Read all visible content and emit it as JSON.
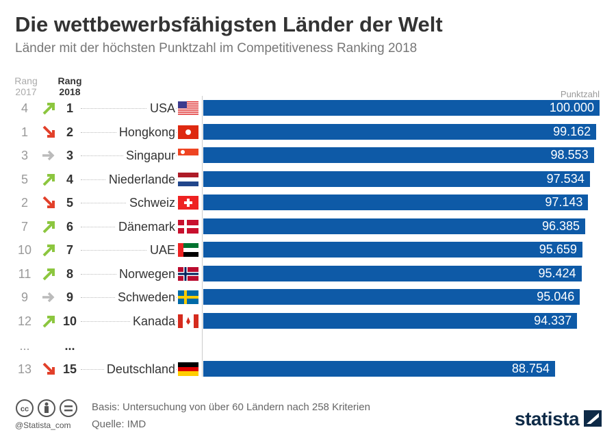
{
  "title": "Die wettbewerbsfähigsten Länder der Welt",
  "subtitle": "Länder mit der höchsten Punktzahl im Competitiveness Ranking 2018",
  "headers": {
    "rank2017": [
      "Rang",
      "2017"
    ],
    "rank2018": [
      "Rang",
      "2018"
    ],
    "score": "Punktzahl"
  },
  "colors": {
    "bar": "#0e5aa7",
    "up": "#8cc63f",
    "down": "#e2402a",
    "same": "#bbbbbb"
  },
  "chart_data": {
    "type": "bar",
    "orientation": "horizontal",
    "xlim": [
      0,
      100
    ],
    "categories": [
      "USA",
      "Hongkong",
      "Singapur",
      "Niederlande",
      "Schweiz",
      "Dänemark",
      "UAE",
      "Norwegen",
      "Schweden",
      "Kanada",
      "Deutschland"
    ],
    "values": [
      100.0,
      99.162,
      98.553,
      97.534,
      97.143,
      96.385,
      95.659,
      95.424,
      95.046,
      94.337,
      88.754
    ],
    "value_labels": [
      "100.000",
      "99.162",
      "98.553",
      "97.534",
      "97.143",
      "96.385",
      "95.659",
      "95.424",
      "95.046",
      "94.337",
      "88.754"
    ],
    "rank2017": [
      "4",
      "1",
      "3",
      "5",
      "2",
      "7",
      "10",
      "11",
      "9",
      "12",
      "13"
    ],
    "rank2018": [
      "1",
      "2",
      "3",
      "4",
      "5",
      "6",
      "7",
      "8",
      "9",
      "10",
      "15"
    ],
    "trend": [
      "up",
      "down",
      "same",
      "up",
      "down",
      "up",
      "up",
      "up",
      "same",
      "up",
      "down"
    ],
    "flags": [
      "us",
      "hk",
      "sg",
      "nl",
      "ch",
      "dk",
      "ae",
      "no",
      "se",
      "ca",
      "de"
    ],
    "gap_label": "..."
  },
  "footer": {
    "basis": "Basis: Untersuchung von über 60 Ländern nach 258 Kriterien",
    "source": "Quelle: IMD",
    "handle": "@Statista_com",
    "logo": "statista"
  }
}
